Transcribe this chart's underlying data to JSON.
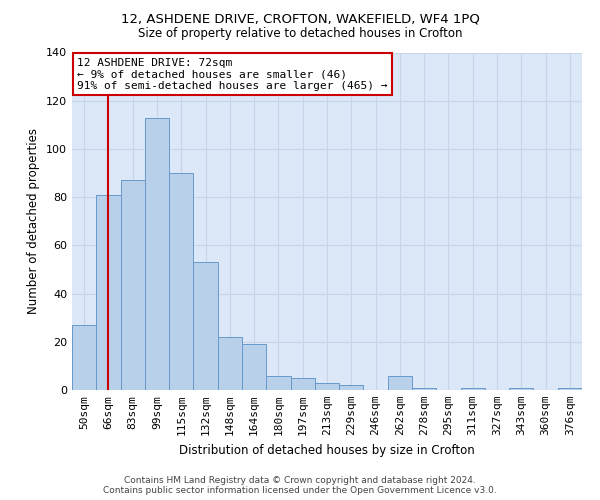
{
  "title_line1": "12, ASHDENE DRIVE, CROFTON, WAKEFIELD, WF4 1PQ",
  "title_line2": "Size of property relative to detached houses in Crofton",
  "xlabel": "Distribution of detached houses by size in Crofton",
  "ylabel": "Number of detached properties",
  "footer_line1": "Contains HM Land Registry data © Crown copyright and database right 2024.",
  "footer_line2": "Contains public sector information licensed under the Open Government Licence v3.0.",
  "categories": [
    "50sqm",
    "66sqm",
    "83sqm",
    "99sqm",
    "115sqm",
    "132sqm",
    "148sqm",
    "164sqm",
    "180sqm",
    "197sqm",
    "213sqm",
    "229sqm",
    "246sqm",
    "262sqm",
    "278sqm",
    "295sqm",
    "311sqm",
    "327sqm",
    "343sqm",
    "360sqm",
    "376sqm"
  ],
  "values": [
    27,
    81,
    87,
    113,
    90,
    53,
    22,
    19,
    6,
    5,
    3,
    2,
    0,
    6,
    1,
    0,
    1,
    0,
    1,
    0,
    1
  ],
  "bar_color": "#b8d0ea",
  "bar_edge_color": "#6699cc",
  "vline_x": 1.0,
  "vline_color": "#cc0000",
  "annotation_text": "12 ASHDENE DRIVE: 72sqm\n← 9% of detached houses are smaller (46)\n91% of semi-detached houses are larger (465) →",
  "annotation_box_color": "#ffffff",
  "annotation_box_edge_color": "#cc0000",
  "ylim": [
    0,
    140
  ],
  "yticks": [
    0,
    20,
    40,
    60,
    80,
    100,
    120,
    140
  ],
  "grid_color": "#c8d4e8",
  "background_color": "#dce8f8"
}
